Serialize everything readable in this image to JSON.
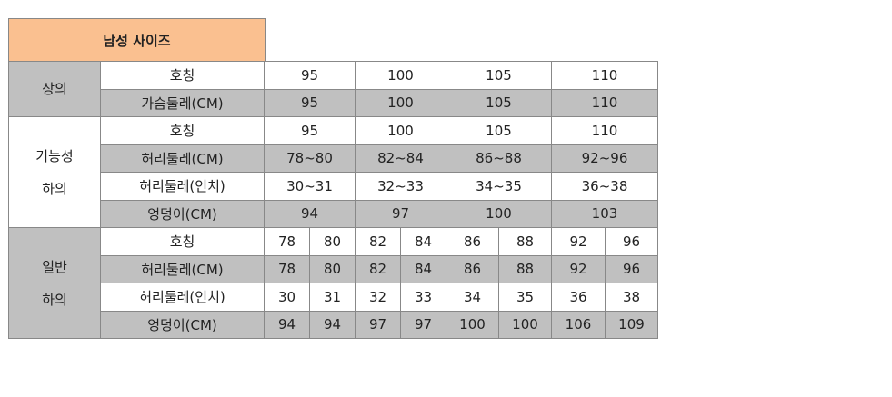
{
  "title": "남성 사이즈",
  "colors": {
    "header": "#fac090",
    "shade": "#c0c0c0",
    "border": "#888888"
  },
  "top": {
    "group": "상의",
    "rows": [
      {
        "label": "호칭",
        "values": [
          "95",
          "100",
          "105",
          "110"
        ]
      },
      {
        "label": "가슴둘레(CM)",
        "values": [
          "95",
          "100",
          "105",
          "110"
        ]
      }
    ]
  },
  "functional": {
    "group": "기능성\n하의",
    "rows": [
      {
        "label": "호칭",
        "values": [
          "95",
          "100",
          "105",
          "110"
        ]
      },
      {
        "label": "허리둘레(CM)",
        "values": [
          "78~80",
          "82~84",
          "86~88",
          "92~96"
        ]
      },
      {
        "label": "허리둘레(인치)",
        "values": [
          "30~31",
          "32~33",
          "34~35",
          "36~38"
        ]
      },
      {
        "label": "엉덩이(CM)",
        "values": [
          "94",
          "97",
          "100",
          "103"
        ]
      }
    ]
  },
  "regular": {
    "group": "일반\n하의",
    "rows": [
      {
        "label": "호칭",
        "values": [
          "78",
          "80",
          "82",
          "84",
          "86",
          "88",
          "92",
          "96"
        ]
      },
      {
        "label": "허리둘레(CM)",
        "values": [
          "78",
          "80",
          "82",
          "84",
          "86",
          "88",
          "92",
          "96"
        ]
      },
      {
        "label": "허리둘레(인치)",
        "values": [
          "30",
          "31",
          "32",
          "33",
          "34",
          "35",
          "36",
          "38"
        ]
      },
      {
        "label": "엉덩이(CM)",
        "values": [
          "94",
          "94",
          "97",
          "97",
          "100",
          "100",
          "106",
          "109"
        ]
      }
    ]
  }
}
